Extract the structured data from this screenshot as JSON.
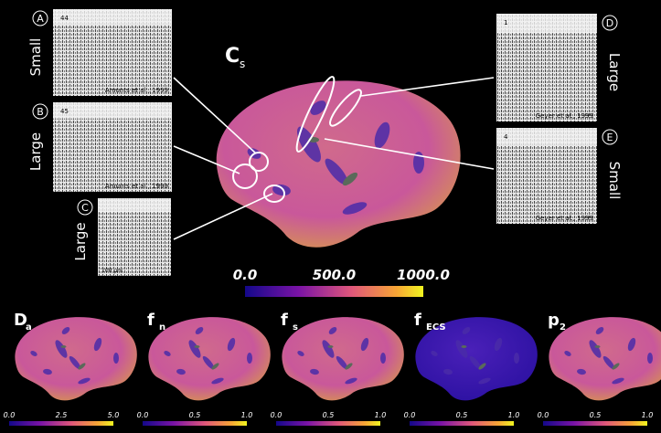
{
  "main": {
    "label": "C",
    "subscript": "s",
    "colorbar_ticks": [
      "0.0",
      "500.0",
      "1000.0"
    ]
  },
  "insets": [
    {
      "letter": "A",
      "size": "Small",
      "caption": "Amunts et al., 1999",
      "area": "44"
    },
    {
      "letter": "B",
      "size": "Large",
      "caption": "Amunts et al., 1999",
      "area": "45"
    },
    {
      "letter": "C",
      "size": "Large",
      "scale": "100 µm"
    },
    {
      "letter": "D",
      "size": "Large",
      "caption": "Geyer et al., 1999",
      "area": "1"
    },
    {
      "letter": "E",
      "size": "Small",
      "caption": "Geyer et al., 1999",
      "area": "4"
    }
  ],
  "panels": [
    {
      "label": "D",
      "subscript": "a",
      "ticks": [
        "0.0",
        "2.5",
        "5.0"
      ]
    },
    {
      "label": "f",
      "subscript": "n",
      "ticks": [
        "0.0",
        "0.5",
        "1.0"
      ]
    },
    {
      "label": "f",
      "subscript": "s",
      "ticks": [
        "0.0",
        "0.5",
        "1.0"
      ]
    },
    {
      "label": "f",
      "subscript": "ECS",
      "ticks": [
        "0.0",
        "0.5",
        "1.0"
      ]
    },
    {
      "label": "p",
      "subscript": "2",
      "ticks": [
        "0.0",
        "0.5",
        "1.0"
      ]
    }
  ]
}
